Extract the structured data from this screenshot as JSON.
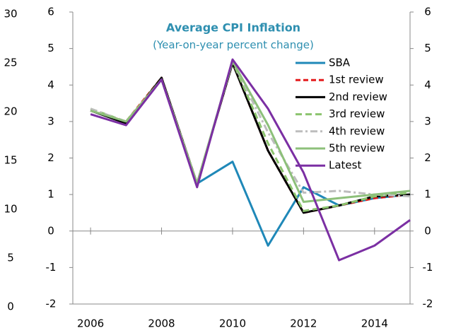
{
  "chart_data": {
    "type": "line",
    "title": "Average CPI Inflation",
    "subtitle": "(Year-on-year percent change)",
    "x": [
      2006,
      2007,
      2008,
      2009,
      2010,
      2011,
      2012,
      2013,
      2014,
      2015
    ],
    "xlim": [
      2005.5,
      2015
    ],
    "xticks": [
      2006,
      2008,
      2010,
      2012,
      2014
    ],
    "ylim": [
      -2,
      6
    ],
    "yticks": [
      -2,
      -1,
      0,
      1,
      2,
      3,
      4,
      5,
      6
    ],
    "y2lim": [
      -2,
      6
    ],
    "y2ticks": [
      -2,
      -1,
      0,
      1,
      2,
      3,
      4,
      5,
      6
    ],
    "outer_ylim": [
      0,
      30
    ],
    "outer_yticks": [
      0,
      5,
      10,
      15,
      20,
      25,
      30
    ],
    "series": [
      {
        "name": "SBA",
        "color": "#1f88b8",
        "dash": "",
        "values": [
          null,
          null,
          null,
          1.3,
          1.9,
          -0.4,
          1.2,
          0.7,
          0.9,
          1.0
        ]
      },
      {
        "name": "1st review",
        "color": "#e41a1c",
        "dash": "7,4",
        "values": [
          3.3,
          3.0,
          4.2,
          1.3,
          4.6,
          2.2,
          0.5,
          0.7,
          0.9,
          1.0
        ]
      },
      {
        "name": "2nd review",
        "color": "#000000",
        "dash": "",
        "values": [
          3.3,
          2.95,
          4.2,
          1.3,
          4.6,
          2.2,
          0.5,
          0.7,
          0.95,
          1.0
        ]
      },
      {
        "name": "3rd review",
        "color": "#8cc46e",
        "dash": "9,5",
        "values": [
          3.35,
          3.0,
          4.15,
          1.3,
          4.65,
          2.4,
          0.55,
          0.7,
          0.95,
          1.05
        ]
      },
      {
        "name": "4th review",
        "color": "#bdbdbd",
        "dash": "10,4,3,4",
        "values": [
          3.35,
          3.0,
          4.15,
          1.3,
          4.65,
          2.7,
          1.05,
          1.1,
          1.0,
          0.95
        ]
      },
      {
        "name": "5th review",
        "color": "#8dc07a",
        "dash": "",
        "values": [
          3.3,
          3.0,
          4.15,
          1.3,
          4.65,
          2.9,
          0.8,
          0.9,
          1.0,
          1.1
        ]
      },
      {
        "name": "Latest",
        "color": "#7b2fa3",
        "dash": "",
        "values": [
          3.2,
          2.9,
          4.15,
          1.2,
          4.7,
          3.35,
          1.6,
          -0.8,
          -0.4,
          0.3
        ]
      }
    ]
  }
}
